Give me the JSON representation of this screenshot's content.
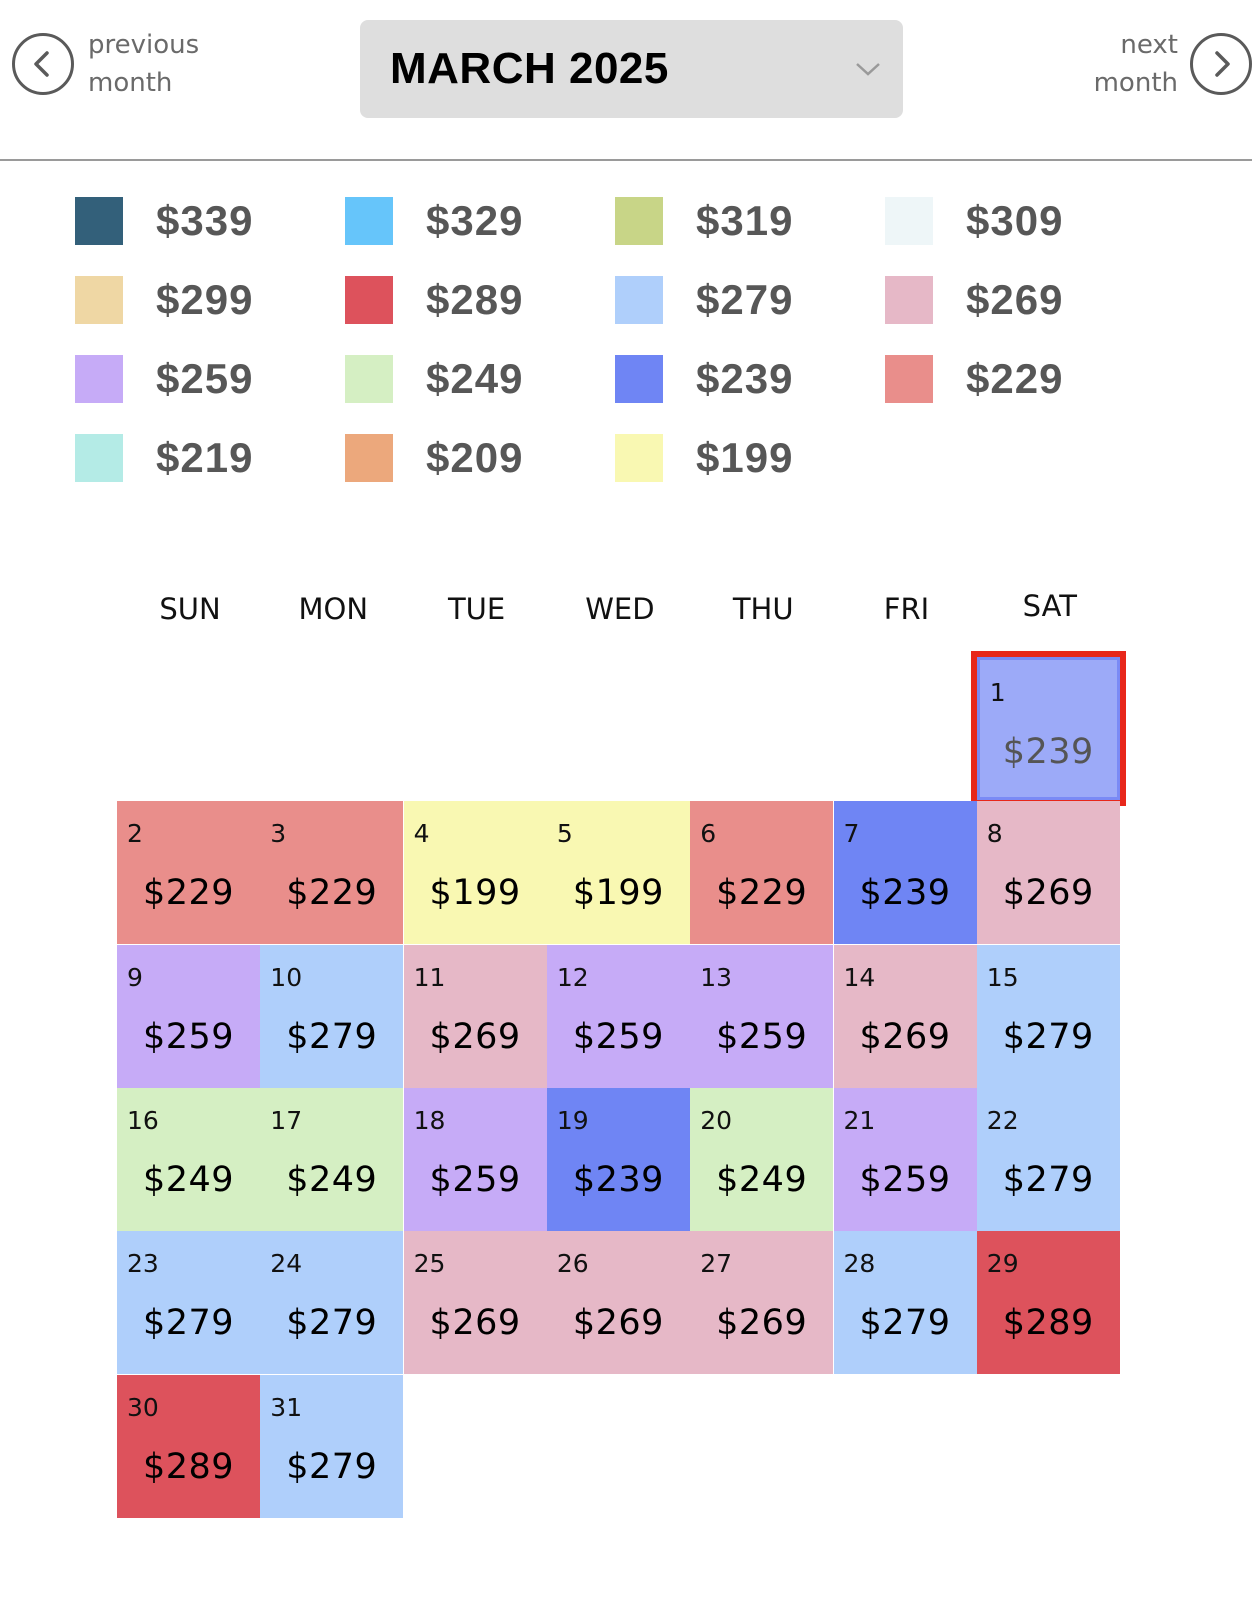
{
  "header": {
    "prev": {
      "label_line1": "previous",
      "label_line2": "month",
      "icon": "chevron-left-circle-icon"
    },
    "next": {
      "label_line1": "next",
      "label_line2": "month",
      "icon": "chevron-right-circle-icon"
    },
    "month_select": {
      "value": "MARCH 2025",
      "icon": "chevron-down-icon"
    }
  },
  "legend": [
    {
      "price": "$339",
      "color": "#33607a"
    },
    {
      "price": "$329",
      "color": "#66c5fa"
    },
    {
      "price": "$319",
      "color": "#c8d587"
    },
    {
      "price": "$309",
      "color": "#eef6f8"
    },
    {
      "price": "$299",
      "color": "#efd7a4"
    },
    {
      "price": "$289",
      "color": "#dd525c"
    },
    {
      "price": "$279",
      "color": "#afcffb"
    },
    {
      "price": "$269",
      "color": "#e6b8c7"
    },
    {
      "price": "$259",
      "color": "#c6abf7"
    },
    {
      "price": "$249",
      "color": "#d5efc3"
    },
    {
      "price": "$239",
      "color": "#6f85f4"
    },
    {
      "price": "$229",
      "color": "#e98e8b"
    },
    {
      "price": "$219",
      "color": "#b4ebe6"
    },
    {
      "price": "$209",
      "color": "#eca87c"
    },
    {
      "price": "$199",
      "color": "#f9f8b2"
    }
  ],
  "calendar": {
    "weekdays": [
      "SUN",
      "MON",
      "TUE",
      "WED",
      "THU",
      "FRI",
      "SAT"
    ],
    "first_weekday_index": 6,
    "selected_day": 1,
    "days": [
      {
        "day": "1",
        "price": "$239",
        "color": "#9caaf8"
      },
      {
        "day": "2",
        "price": "$229",
        "color": "#e98e8b"
      },
      {
        "day": "3",
        "price": "$229",
        "color": "#e98e8b"
      },
      {
        "day": "4",
        "price": "$199",
        "color": "#f9f8b2"
      },
      {
        "day": "5",
        "price": "$199",
        "color": "#f9f8b2"
      },
      {
        "day": "6",
        "price": "$229",
        "color": "#e98e8b"
      },
      {
        "day": "7",
        "price": "$239",
        "color": "#6f85f4"
      },
      {
        "day": "8",
        "price": "$269",
        "color": "#e6b8c7"
      },
      {
        "day": "9",
        "price": "$259",
        "color": "#c6abf7"
      },
      {
        "day": "10",
        "price": "$279",
        "color": "#afcffb"
      },
      {
        "day": "11",
        "price": "$269",
        "color": "#e6b8c7"
      },
      {
        "day": "12",
        "price": "$259",
        "color": "#c6abf7"
      },
      {
        "day": "13",
        "price": "$259",
        "color": "#c6abf7"
      },
      {
        "day": "14",
        "price": "$269",
        "color": "#e6b8c7"
      },
      {
        "day": "15",
        "price": "$279",
        "color": "#afcffb"
      },
      {
        "day": "16",
        "price": "$249",
        "color": "#d5efc3"
      },
      {
        "day": "17",
        "price": "$249",
        "color": "#d5efc3"
      },
      {
        "day": "18",
        "price": "$259",
        "color": "#c6abf7"
      },
      {
        "day": "19",
        "price": "$239",
        "color": "#6f85f4"
      },
      {
        "day": "20",
        "price": "$249",
        "color": "#d5efc3"
      },
      {
        "day": "21",
        "price": "$259",
        "color": "#c6abf7"
      },
      {
        "day": "22",
        "price": "$279",
        "color": "#afcffb"
      },
      {
        "day": "23",
        "price": "$279",
        "color": "#afcffb"
      },
      {
        "day": "24",
        "price": "$279",
        "color": "#afcffb"
      },
      {
        "day": "25",
        "price": "$269",
        "color": "#e6b8c7"
      },
      {
        "day": "26",
        "price": "$269",
        "color": "#e6b8c7"
      },
      {
        "day": "27",
        "price": "$269",
        "color": "#e6b8c7"
      },
      {
        "day": "28",
        "price": "$279",
        "color": "#afcffb"
      },
      {
        "day": "29",
        "price": "$289",
        "color": "#dd525c"
      },
      {
        "day": "30",
        "price": "$289",
        "color": "#dd525c"
      },
      {
        "day": "31",
        "price": "$279",
        "color": "#afcffb"
      }
    ]
  },
  "colors": {
    "selected_outline": "#e8271b",
    "select_background": "#dedede",
    "divider": "#9a9a9a"
  }
}
